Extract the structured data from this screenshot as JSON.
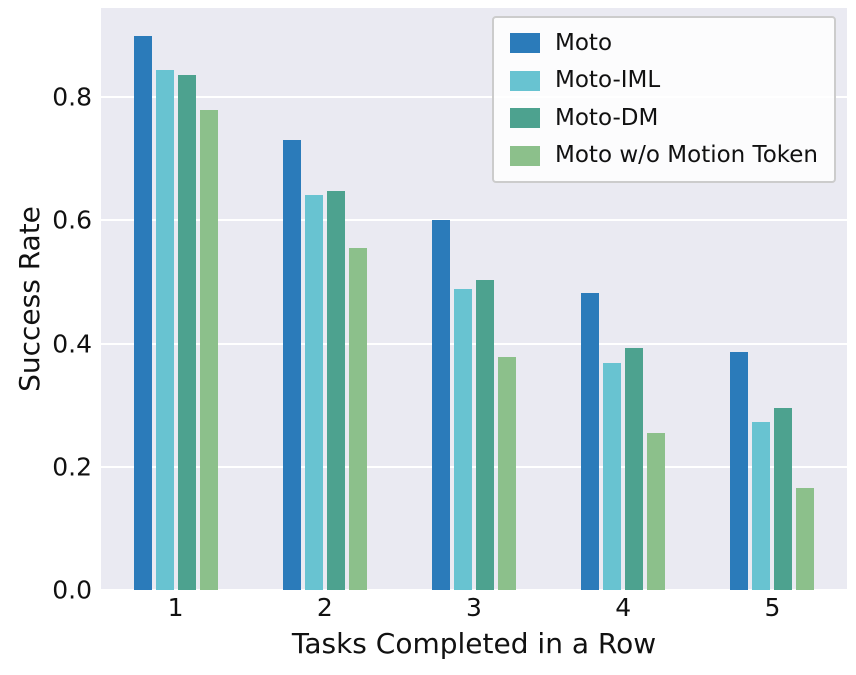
{
  "chart_data": {
    "type": "bar",
    "title": "",
    "xlabel": "Tasks Completed in a Row",
    "ylabel": "Success Rate",
    "categories": [
      "1",
      "2",
      "3",
      "4",
      "5"
    ],
    "series": [
      {
        "name": "Moto",
        "color": "#2b7bba",
        "values": [
          0.9,
          0.73,
          0.601,
          0.483,
          0.386
        ]
      },
      {
        "name": "Moto-IML",
        "color": "#68c3d1",
        "values": [
          0.845,
          0.641,
          0.488,
          0.368,
          0.273
        ]
      },
      {
        "name": "Moto-DM",
        "color": "#4da28f",
        "values": [
          0.836,
          0.648,
          0.503,
          0.393,
          0.296
        ]
      },
      {
        "name": "Moto w/o Motion Token",
        "color": "#8cc08b",
        "values": [
          0.779,
          0.555,
          0.378,
          0.255,
          0.165
        ]
      }
    ],
    "ylim": [
      0,
      0.945
    ],
    "yticks": [
      0.0,
      0.2,
      0.4,
      0.6,
      0.8
    ],
    "ytick_labels": [
      "0.0",
      "0.2",
      "0.4",
      "0.6",
      "0.8"
    ],
    "grid": true,
    "legend_position": "upper right",
    "plot_background": "#eaeaf2",
    "grid_color": "#ffffff"
  }
}
